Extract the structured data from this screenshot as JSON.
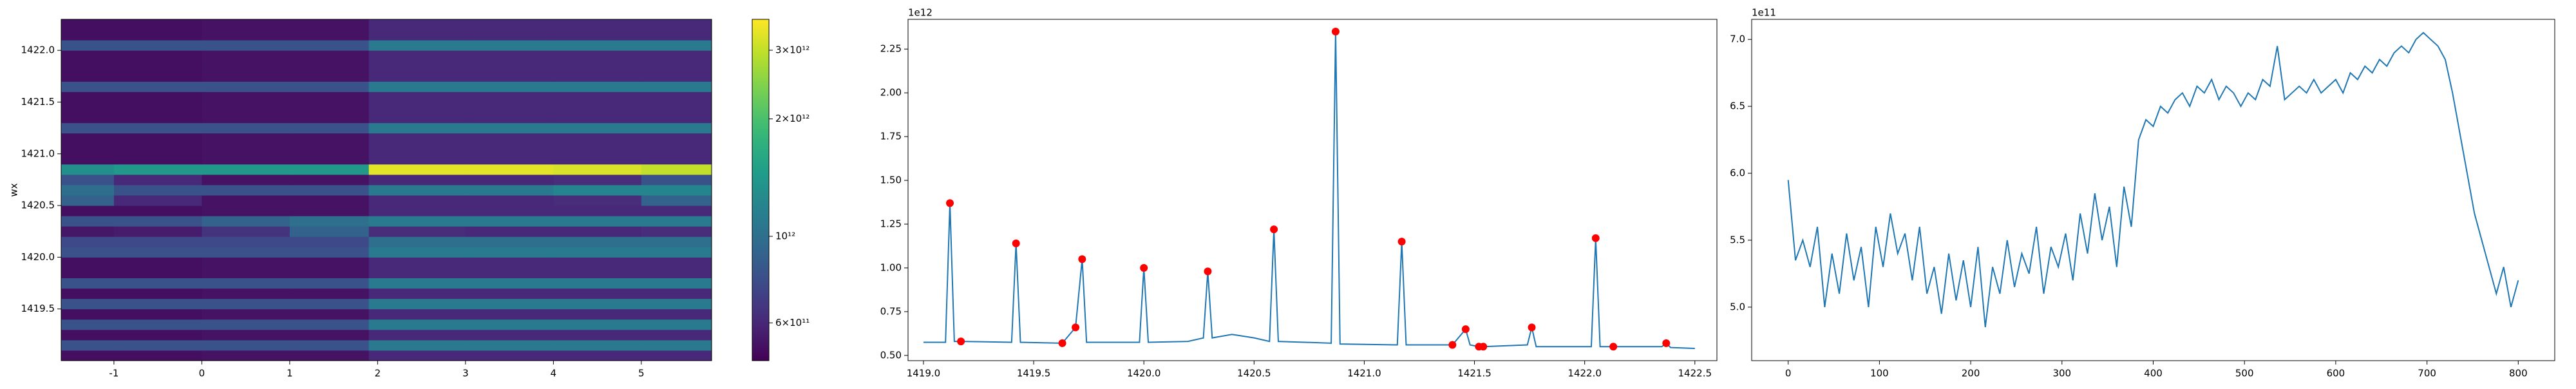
{
  "chart_data": [
    {
      "type": "heatmap",
      "y_label": "wx",
      "colormap": "viridis",
      "log": true,
      "xlim": [
        -1.6,
        5.8
      ],
      "ylim": [
        1419.0,
        1422.3
      ],
      "xticks": [
        -1,
        0,
        1,
        2,
        3,
        4,
        5
      ],
      "yticks": [
        1419.5,
        {
          "value": 1420.0,
          "label": "1420.0"
        },
        1420.5,
        {
          "value": 1421.0,
          "label": "1421.0"
        },
        1421.5,
        {
          "value": 1422.0,
          "label": "1422.0"
        }
      ],
      "xbins": [
        -1.6,
        -1,
        0,
        1,
        1.9,
        3,
        4,
        5,
        5.8
      ],
      "ybins": [
        1419.0,
        1419.1,
        1419.2,
        1419.3,
        1419.4,
        1419.5,
        1419.6,
        1419.7,
        1419.8,
        1419.9,
        1420.0,
        1420.1,
        1420.2,
        1420.3,
        1420.4,
        1420.5,
        1420.6,
        1420.7,
        1420.8,
        1420.9,
        1421.0,
        1421.1,
        1421.2,
        1421.3,
        1421.4,
        1421.5,
        1421.6,
        1421.7,
        1421.8,
        1421.9,
        1422.0,
        1422.1,
        1422.2,
        1422.3
      ],
      "z": [
        [
          520000000000.0,
          520000000000.0,
          530000000000.0,
          530000000000.0,
          600000000000.0,
          600000000000.0,
          600000000000.0,
          600000000000.0
        ],
        [
          800000000000.0,
          800000000000.0,
          800000000000.0,
          800000000000.0,
          1100000000000.0,
          1100000000000.0,
          1100000000000.0,
          1100000000000.0
        ],
        [
          520000000000.0,
          520000000000.0,
          530000000000.0,
          530000000000.0,
          600000000000.0,
          600000000000.0,
          600000000000.0,
          600000000000.0
        ],
        [
          800000000000.0,
          800000000000.0,
          800000000000.0,
          800000000000.0,
          1100000000000.0,
          1100000000000.0,
          1100000000000.0,
          1100000000000.0
        ],
        [
          520000000000.0,
          520000000000.0,
          530000000000.0,
          530000000000.0,
          600000000000.0,
          600000000000.0,
          600000000000.0,
          600000000000.0
        ],
        [
          800000000000.0,
          800000000000.0,
          800000000000.0,
          800000000000.0,
          1100000000000.0,
          1100000000000.0,
          1100000000000.0,
          1100000000000.0
        ],
        [
          520000000000.0,
          520000000000.0,
          530000000000.0,
          530000000000.0,
          600000000000.0,
          600000000000.0,
          600000000000.0,
          600000000000.0
        ],
        [
          800000000000.0,
          800000000000.0,
          800000000000.0,
          800000000000.0,
          1100000000000.0,
          1100000000000.0,
          1100000000000.0,
          1100000000000.0
        ],
        [
          520000000000.0,
          520000000000.0,
          530000000000.0,
          530000000000.0,
          600000000000.0,
          600000000000.0,
          600000000000.0,
          600000000000.0
        ],
        [
          520000000000.0,
          520000000000.0,
          530000000000.0,
          530000000000.0,
          600000000000.0,
          600000000000.0,
          600000000000.0,
          600000000000.0
        ],
        [
          800000000000.0,
          800000000000.0,
          800000000000.0,
          800000000000.0,
          1100000000000.0,
          1100000000000.0,
          1100000000000.0,
          1100000000000.0
        ],
        [
          750000000000.0,
          750000000000.0,
          750000000000.0,
          750000000000.0,
          1000000000000.0,
          1000000000000.0,
          1000000000000.0,
          1000000000000.0
        ],
        [
          540000000000.0,
          560000000000.0,
          650000000000.0,
          900000000000.0,
          620000000000.0,
          600000000000.0,
          600000000000.0,
          620000000000.0
        ],
        [
          800000000000.0,
          800000000000.0,
          900000000000.0,
          1000000000000.0,
          1100000000000.0,
          1100000000000.0,
          1100000000000.0,
          1100000000000.0
        ],
        [
          520000000000.0,
          520000000000.0,
          530000000000.0,
          530000000000.0,
          600000000000.0,
          600000000000.0,
          600000000000.0,
          600000000000.0
        ],
        [
          900000000000.0,
          600000000000.0,
          530000000000.0,
          530000000000.0,
          600000000000.0,
          600000000000.0,
          620000000000.0,
          900000000000.0
        ],
        [
          1000000000000.0,
          800000000000.0,
          800000000000.0,
          800000000000.0,
          1100000000000.0,
          1100000000000.0,
          1200000000000.0,
          1200000000000.0
        ],
        [
          800000000000.0,
          600000000000.0,
          530000000000.0,
          530000000000.0,
          600000000000.0,
          600000000000.0,
          620000000000.0,
          800000000000.0
        ],
        [
          1300000000000.0,
          1400000000000.0,
          1400000000000.0,
          1400000000000.0,
          3300000000000.0,
          3300000000000.0,
          3200000000000.0,
          3000000000000.0
        ],
        [
          520000000000.0,
          520000000000.0,
          530000000000.0,
          530000000000.0,
          600000000000.0,
          600000000000.0,
          600000000000.0,
          600000000000.0
        ],
        [
          520000000000.0,
          520000000000.0,
          530000000000.0,
          530000000000.0,
          600000000000.0,
          600000000000.0,
          600000000000.0,
          600000000000.0
        ],
        [
          520000000000.0,
          520000000000.0,
          530000000000.0,
          530000000000.0,
          600000000000.0,
          600000000000.0,
          600000000000.0,
          600000000000.0
        ],
        [
          800000000000.0,
          800000000000.0,
          800000000000.0,
          800000000000.0,
          1100000000000.0,
          1100000000000.0,
          1100000000000.0,
          1100000000000.0
        ],
        [
          520000000000.0,
          520000000000.0,
          530000000000.0,
          530000000000.0,
          600000000000.0,
          600000000000.0,
          600000000000.0,
          600000000000.0
        ],
        [
          520000000000.0,
          520000000000.0,
          530000000000.0,
          530000000000.0,
          600000000000.0,
          600000000000.0,
          600000000000.0,
          600000000000.0
        ],
        [
          520000000000.0,
          520000000000.0,
          530000000000.0,
          530000000000.0,
          600000000000.0,
          600000000000.0,
          600000000000.0,
          600000000000.0
        ],
        [
          800000000000.0,
          800000000000.0,
          800000000000.0,
          800000000000.0,
          1100000000000.0,
          1100000000000.0,
          1100000000000.0,
          1100000000000.0
        ],
        [
          520000000000.0,
          520000000000.0,
          530000000000.0,
          530000000000.0,
          600000000000.0,
          600000000000.0,
          600000000000.0,
          600000000000.0
        ],
        [
          520000000000.0,
          520000000000.0,
          530000000000.0,
          530000000000.0,
          600000000000.0,
          600000000000.0,
          600000000000.0,
          600000000000.0
        ],
        [
          520000000000.0,
          520000000000.0,
          530000000000.0,
          530000000000.0,
          600000000000.0,
          600000000000.0,
          600000000000.0,
          600000000000.0
        ],
        [
          800000000000.0,
          800000000000.0,
          800000000000.0,
          800000000000.0,
          1100000000000.0,
          1100000000000.0,
          1100000000000.0,
          1100000000000.0
        ],
        [
          520000000000.0,
          520000000000.0,
          530000000000.0,
          530000000000.0,
          600000000000.0,
          600000000000.0,
          600000000000.0,
          600000000000.0
        ],
        [
          520000000000.0,
          520000000000.0,
          530000000000.0,
          530000000000.0,
          600000000000.0,
          600000000000.0,
          600000000000.0,
          600000000000.0
        ]
      ],
      "clim": [
        480000000000.0,
        3600000000000.0
      ],
      "cticks": [
        {
          "value": 600000000000.0,
          "label": "6×10¹¹"
        },
        {
          "value": 1000000000000.0,
          "label": "10¹²"
        },
        {
          "value": 2000000000000.0,
          "label": "2×10¹²"
        },
        {
          "value": 3000000000000.0,
          "label": "3×10¹²"
        }
      ]
    },
    {
      "type": "line",
      "offset_label": "1e12",
      "xlim": [
        1418.93,
        1422.6
      ],
      "ylim": [
        0.47,
        2.42
      ],
      "xticks": [
        {
          "value": 1419.0,
          "label": "1419.0"
        },
        1419.5,
        {
          "value": 1420.0,
          "label": "1420.0"
        },
        1420.5,
        {
          "value": 1421.0,
          "label": "1421.0"
        },
        1421.5,
        {
          "value": 1422.0,
          "label": "1422.0"
        },
        1422.5
      ],
      "yticks": [
        {
          "value": 0.5,
          "label": "0.50"
        },
        0.75,
        {
          "value": 1.0,
          "label": "1.00"
        },
        1.25,
        {
          "value": 1.5,
          "label": "1.50"
        },
        1.75,
        {
          "value": 2.0,
          "label": "2.00"
        },
        2.25
      ],
      "series": [
        {
          "color": "#1f77b4",
          "x": [
            1419.0,
            1419.1,
            1419.12,
            1419.14,
            1419.17,
            1419.4,
            1419.42,
            1419.44,
            1419.63,
            1419.69,
            1419.72,
            1419.74,
            1419.98,
            1420.0,
            1420.02,
            1420.2,
            1420.27,
            1420.29,
            1420.31,
            1420.4,
            1420.5,
            1420.57,
            1420.59,
            1420.61,
            1420.85,
            1420.87,
            1420.89,
            1421.15,
            1421.17,
            1421.19,
            1421.4,
            1421.46,
            1421.48,
            1421.52,
            1421.54,
            1421.74,
            1421.76,
            1421.78,
            1422.03,
            1422.05,
            1422.07,
            1422.13,
            1422.35,
            1422.37,
            1422.39,
            1422.5
          ],
          "values": [
            0.575,
            0.575,
            1.37,
            0.58,
            0.58,
            0.575,
            1.14,
            0.575,
            0.57,
            0.66,
            1.05,
            0.575,
            0.575,
            1.0,
            0.575,
            0.58,
            0.6,
            0.98,
            0.6,
            0.62,
            0.6,
            0.58,
            1.22,
            0.58,
            0.57,
            2.35,
            0.565,
            0.56,
            1.15,
            0.56,
            0.56,
            0.65,
            0.56,
            0.55,
            0.55,
            0.56,
            0.66,
            0.55,
            0.55,
            1.17,
            0.55,
            0.55,
            0.55,
            0.57,
            0.545,
            0.54
          ]
        }
      ],
      "points": {
        "color": "#ff0000",
        "x": [
          1419.12,
          1419.17,
          1419.42,
          1419.63,
          1419.69,
          1419.72,
          1420.0,
          1420.29,
          1420.59,
          1420.87,
          1421.17,
          1421.4,
          1421.46,
          1421.52,
          1421.54,
          1421.76,
          1422.05,
          1422.13,
          1422.37
        ],
        "values": [
          1.37,
          0.58,
          1.14,
          0.57,
          0.66,
          1.05,
          1.0,
          0.98,
          1.22,
          2.35,
          1.15,
          0.56,
          0.65,
          0.55,
          0.55,
          0.66,
          1.17,
          0.55,
          0.57
        ]
      }
    },
    {
      "type": "line",
      "offset_label": "1e11",
      "xlim": [
        -40,
        840
      ],
      "ylim": [
        4.6,
        7.15
      ],
      "xticks": [
        0,
        100,
        200,
        300,
        400,
        500,
        600,
        700,
        800
      ],
      "yticks": [
        {
          "value": 5.0,
          "label": "5.0"
        },
        5.5,
        {
          "value": 6.0,
          "label": "6.0"
        },
        6.5,
        {
          "value": 7.0,
          "label": "7.0"
        }
      ],
      "series": [
        {
          "color": "#1f77b4",
          "x": [
            0,
            8,
            16,
            24,
            32,
            40,
            48,
            56,
            64,
            72,
            80,
            88,
            96,
            104,
            112,
            120,
            128,
            136,
            144,
            152,
            160,
            168,
            176,
            184,
            192,
            200,
            208,
            216,
            224,
            232,
            240,
            248,
            256,
            264,
            272,
            280,
            288,
            296,
            304,
            312,
            320,
            328,
            336,
            344,
            352,
            360,
            368,
            376,
            384,
            392,
            400,
            408,
            416,
            424,
            432,
            440,
            448,
            456,
            464,
            472,
            480,
            488,
            496,
            504,
            512,
            520,
            528,
            536,
            544,
            552,
            560,
            568,
            576,
            584,
            592,
            600,
            608,
            616,
            624,
            632,
            640,
            648,
            656,
            664,
            672,
            680,
            688,
            696,
            704,
            712,
            720,
            728,
            736,
            744,
            752,
            760,
            768,
            776,
            784,
            792,
            800
          ],
          "values": [
            5.95,
            5.35,
            5.5,
            5.3,
            5.6,
            5.0,
            5.4,
            5.1,
            5.55,
            5.2,
            5.45,
            5.0,
            5.6,
            5.3,
            5.7,
            5.4,
            5.55,
            5.2,
            5.6,
            5.1,
            5.3,
            4.95,
            5.4,
            5.05,
            5.35,
            5.0,
            5.45,
            4.85,
            5.3,
            5.1,
            5.5,
            5.15,
            5.4,
            5.25,
            5.6,
            5.1,
            5.45,
            5.3,
            5.55,
            5.2,
            5.7,
            5.4,
            5.85,
            5.5,
            5.75,
            5.3,
            5.9,
            5.6,
            6.25,
            6.4,
            6.35,
            6.5,
            6.45,
            6.55,
            6.6,
            6.5,
            6.65,
            6.6,
            6.7,
            6.55,
            6.65,
            6.6,
            6.5,
            6.6,
            6.55,
            6.7,
            6.65,
            6.95,
            6.55,
            6.6,
            6.65,
            6.6,
            6.7,
            6.6,
            6.65,
            6.7,
            6.6,
            6.75,
            6.7,
            6.8,
            6.75,
            6.85,
            6.8,
            6.9,
            6.95,
            6.9,
            7.0,
            7.05,
            7.0,
            6.95,
            6.85,
            6.6,
            6.3,
            6.0,
            5.7,
            5.5,
            5.3,
            5.1,
            5.3,
            5.0,
            5.2
          ]
        }
      ]
    }
  ]
}
